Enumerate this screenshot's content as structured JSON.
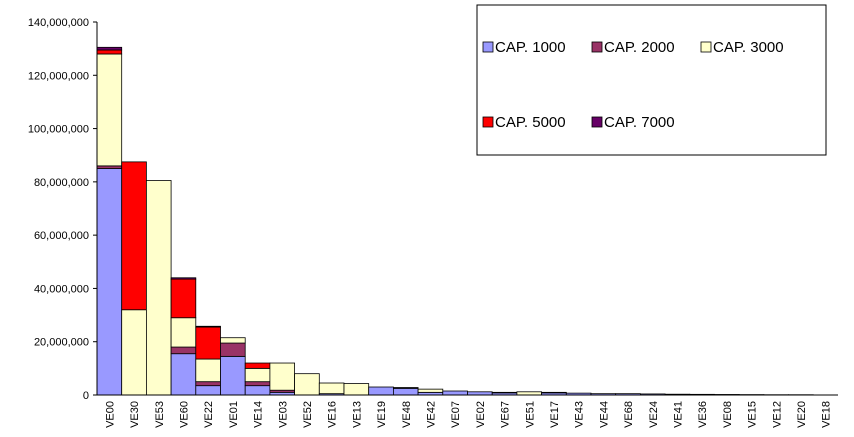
{
  "chart_data": {
    "type": "stacked_bar",
    "categories": [
      "VE00",
      "VE30",
      "VE53",
      "VE60",
      "VE22",
      "VE01",
      "VE14",
      "VE03",
      "VE52",
      "VE16",
      "VE13",
      "VE19",
      "VE48",
      "VE42",
      "VE07",
      "VE02",
      "VE67",
      "VE51",
      "VE17",
      "VE43",
      "VE44",
      "VE68",
      "VE24",
      "VE41",
      "VE36",
      "VE08",
      "VE15",
      "VE12",
      "VE20",
      "VE18"
    ],
    "series": [
      {
        "name": "CAP. 1000",
        "color": "#9999ff",
        "values": [
          85000000,
          0,
          0,
          15500000,
          3500000,
          14500000,
          3500000,
          1000000,
          0,
          500000,
          0,
          3000000,
          2500000,
          1000000,
          1500000,
          1200000,
          800000,
          0,
          800000,
          700000,
          500000,
          500000,
          400000,
          300000,
          250000,
          200000,
          150000,
          100000,
          100000,
          0
        ]
      },
      {
        "name": "CAP. 2000",
        "color": "#993366",
        "values": [
          1000000,
          0,
          0,
          2500000,
          1500000,
          5000000,
          1500000,
          800000,
          0,
          0,
          0,
          0,
          300000,
          0,
          0,
          0,
          200000,
          0,
          200000,
          0,
          0,
          0,
          0,
          0,
          0,
          0,
          0,
          0,
          0,
          0
        ]
      },
      {
        "name": "CAP. 3000",
        "color": "#ffffcc",
        "values": [
          42000000,
          32000000,
          80500000,
          11000000,
          8500000,
          2000000,
          5000000,
          10200000,
          8000000,
          4000000,
          4300000,
          0,
          0,
          1200000,
          0,
          0,
          0,
          1200000,
          0,
          0,
          0,
          0,
          0,
          0,
          0,
          0,
          0,
          0,
          0,
          0
        ]
      },
      {
        "name": "CAP. 5000",
        "color": "#ff0000",
        "values": [
          1500000,
          55500000,
          0,
          14500000,
          12000000,
          0,
          2000000,
          0,
          0,
          0,
          0,
          0,
          0,
          0,
          0,
          0,
          0,
          0,
          0,
          0,
          0,
          0,
          0,
          0,
          0,
          0,
          0,
          0,
          0,
          0
        ]
      },
      {
        "name": "CAP. 7000",
        "color": "#660066",
        "values": [
          1000000,
          0,
          0,
          500000,
          300000,
          0,
          0,
          0,
          0,
          0,
          0,
          0,
          0,
          0,
          0,
          0,
          0,
          0,
          0,
          0,
          0,
          0,
          0,
          0,
          0,
          0,
          0,
          0,
          0,
          0
        ]
      }
    ],
    "ylim": [
      0,
      140000000
    ],
    "yticks": [
      {
        "value": 0,
        "label": "0"
      },
      {
        "value": 20000000,
        "label": "20,000,000"
      },
      {
        "value": 40000000,
        "label": "40,000,000"
      },
      {
        "value": 60000000,
        "label": "60,000,000"
      },
      {
        "value": 80000000,
        "label": "80,000,000"
      },
      {
        "value": 100000000,
        "label": "100,000,000"
      },
      {
        "value": 120000000,
        "label": "120,000,000"
      },
      {
        "value": 140000000,
        "label": "140,000,000"
      }
    ],
    "legend": "top-right",
    "grid": false
  }
}
